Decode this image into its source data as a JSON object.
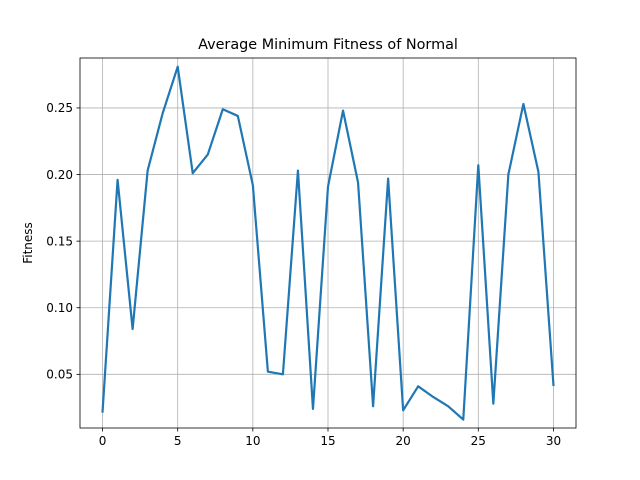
{
  "chart_data": {
    "type": "line",
    "title": "Average Minimum Fitness of Normal",
    "xlabel": "",
    "ylabel": "Fitness",
    "xlim": [
      -1.5,
      31.5
    ],
    "ylim": [
      0.0097,
      0.2875
    ],
    "xticks": [
      0,
      5,
      10,
      15,
      20,
      25,
      30
    ],
    "xtick_labels": [
      "0",
      "5",
      "10",
      "15",
      "20",
      "25",
      "30"
    ],
    "yticks": [
      0.05,
      0.1,
      0.15,
      0.2,
      0.25
    ],
    "ytick_labels": [
      "0.05",
      "0.10",
      "0.15",
      "0.20",
      "0.25"
    ],
    "grid": true,
    "series": [
      {
        "color": "#1f77b4",
        "x": [
          0,
          1,
          2,
          3,
          4,
          5,
          6,
          7,
          8,
          9,
          10,
          11,
          12,
          13,
          14,
          15,
          16,
          17,
          18,
          19,
          20,
          21,
          22,
          23,
          24,
          25,
          26,
          27,
          28,
          29,
          30
        ],
        "y": [
          0.022,
          0.196,
          0.084,
          0.203,
          0.246,
          0.281,
          0.201,
          0.215,
          0.249,
          0.244,
          0.192,
          0.052,
          0.05,
          0.203,
          0.024,
          0.191,
          0.248,
          0.194,
          0.026,
          0.197,
          0.023,
          0.041,
          0.033,
          0.026,
          0.016,
          0.207,
          0.028,
          0.2,
          0.253,
          0.202,
          0.042
        ]
      }
    ]
  }
}
